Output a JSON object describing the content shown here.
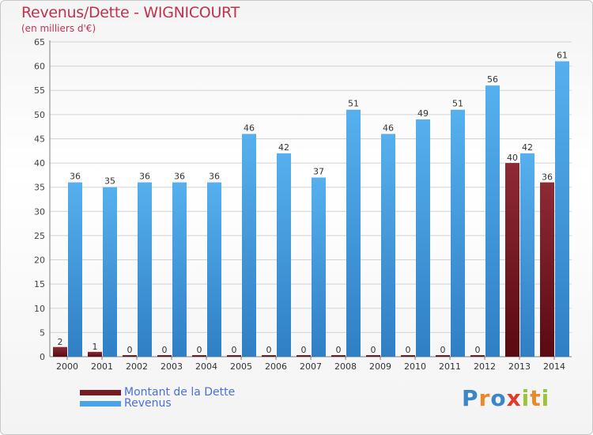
{
  "title": "Revenus/Dette - WIGNICOURT",
  "subtitle": "(en milliers d'€)",
  "logo": {
    "text": "Proxiti",
    "letters": [
      "P",
      "r",
      "o",
      "x",
      "i",
      "t",
      "i"
    ],
    "colors": [
      "#3a86c8",
      "#e8892b",
      "#3a86c8",
      "#e23a2a",
      "#9bc43c",
      "#e8892b",
      "#9bc43c"
    ]
  },
  "legend": {
    "debt_label": "Montant de la Dette",
    "revenue_label": "Revenus"
  },
  "colors": {
    "debt": "#7a1a22",
    "revenue": "#4aa3e6",
    "grid": "#d2d2d2",
    "axis": "#808080",
    "text": "#333333"
  },
  "chart_data": {
    "type": "bar",
    "title": "Revenus/Dette - WIGNICOURT",
    "ylabel": "(en milliers d'€)",
    "xlabel": "",
    "ylim": [
      0,
      65
    ],
    "yticks": [
      0,
      5,
      10,
      15,
      20,
      25,
      30,
      35,
      40,
      45,
      50,
      55,
      60,
      65
    ],
    "categories": [
      "2000",
      "2001",
      "2002",
      "2003",
      "2004",
      "2005",
      "2006",
      "2007",
      "2008",
      "2009",
      "2010",
      "2011",
      "2012",
      "2013",
      "2014"
    ],
    "series": [
      {
        "name": "Montant de la Dette",
        "values": [
          2,
          1,
          0,
          0,
          0,
          0,
          0,
          0,
          0,
          0,
          0,
          0,
          0,
          40,
          36
        ]
      },
      {
        "name": "Revenus",
        "values": [
          36,
          35,
          36,
          36,
          36,
          46,
          42,
          37,
          51,
          46,
          49,
          51,
          56,
          42,
          61
        ]
      }
    ],
    "grid": true,
    "legend_position": "bottom-left"
  }
}
